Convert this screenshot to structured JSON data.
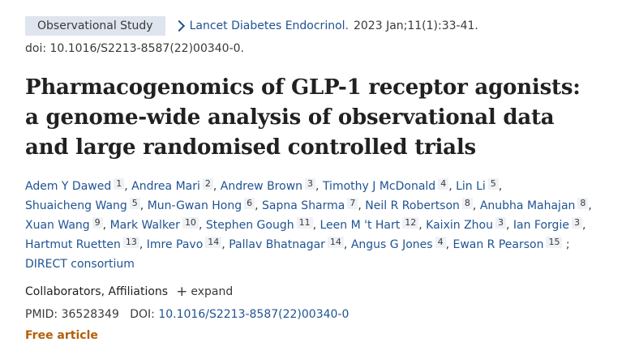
{
  "header": {
    "article_type": "Observational Study",
    "journal": "Lancet Diabetes Endocrinol.",
    "citation": "2023 Jan;11(1):33-41.",
    "doi_line": "doi: 10.1016/S2213-8587(22)00340-0."
  },
  "title": "Pharmacogenomics of GLP-1 receptor agonists: a genome-wide analysis of observational data and large randomised controlled trials",
  "authors": [
    {
      "name": "Adem Y Dawed",
      "aff": "1"
    },
    {
      "name": "Andrea Mari",
      "aff": "2"
    },
    {
      "name": "Andrew Brown",
      "aff": "3"
    },
    {
      "name": "Timothy J McDonald",
      "aff": "4"
    },
    {
      "name": "Lin Li",
      "aff": "5"
    },
    {
      "name": "Shuaicheng Wang",
      "aff": "5"
    },
    {
      "name": "Mun-Gwan Hong",
      "aff": "6"
    },
    {
      "name": "Sapna Sharma",
      "aff": "7"
    },
    {
      "name": "Neil R Robertson",
      "aff": "8"
    },
    {
      "name": "Anubha Mahajan",
      "aff": "8"
    },
    {
      "name": "Xuan Wang",
      "aff": "9"
    },
    {
      "name": "Mark Walker",
      "aff": "10"
    },
    {
      "name": "Stephen Gough",
      "aff": "11"
    },
    {
      "name": "Leen M 't Hart",
      "aff": "12"
    },
    {
      "name": "Kaixin Zhou",
      "aff": "3"
    },
    {
      "name": "Ian Forgie",
      "aff": "3"
    },
    {
      "name": "Hartmut Ruetten",
      "aff": "13"
    },
    {
      "name": "Imre Pavo",
      "aff": "14"
    },
    {
      "name": "Pallav Bhatnagar",
      "aff": "14"
    },
    {
      "name": "Angus G Jones",
      "aff": "4"
    },
    {
      "name": "Ewan R Pearson",
      "aff": "15"
    }
  ],
  "group_author": "DIRECT consortium",
  "collaborators_label": "Collaborators, Affiliations",
  "expand_label": "expand",
  "pmid_label": "PMID:",
  "pmid": "36528349",
  "doi_label": "DOI:",
  "doi": "10.1016/S2213-8587(22)00340-0",
  "free_article": "Free article"
}
